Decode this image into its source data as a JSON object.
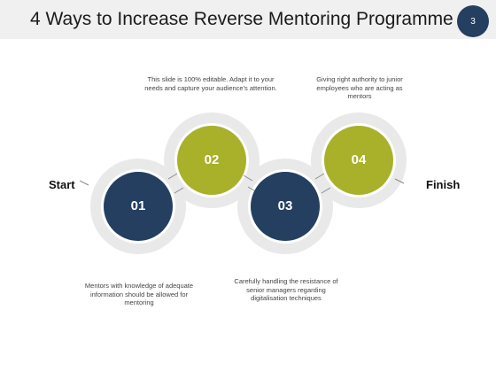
{
  "header": {
    "title": "4 Ways to Increase Reverse Mentoring Programme",
    "page_number": "3"
  },
  "labels": {
    "start": "Start",
    "finish": "Finish"
  },
  "steps": [
    {
      "number": "01",
      "text": "Mentors with knowledge of adequate information should be allowed for mentoring"
    },
    {
      "number": "02",
      "text": "This slide is 100% editable. Adapt it to your needs and capture your audience's attention."
    },
    {
      "number": "03",
      "text": "Carefully handling the resistance of senior managers regarding digitalisation techniques"
    },
    {
      "number": "04",
      "text": "Giving right authority to junior employees who are acting as mentors"
    }
  ],
  "colors": {
    "navy": "#243f60",
    "olive": "#a9b02a",
    "ring": "#e9e9e9",
    "header_bg": "#f0f0f0"
  }
}
